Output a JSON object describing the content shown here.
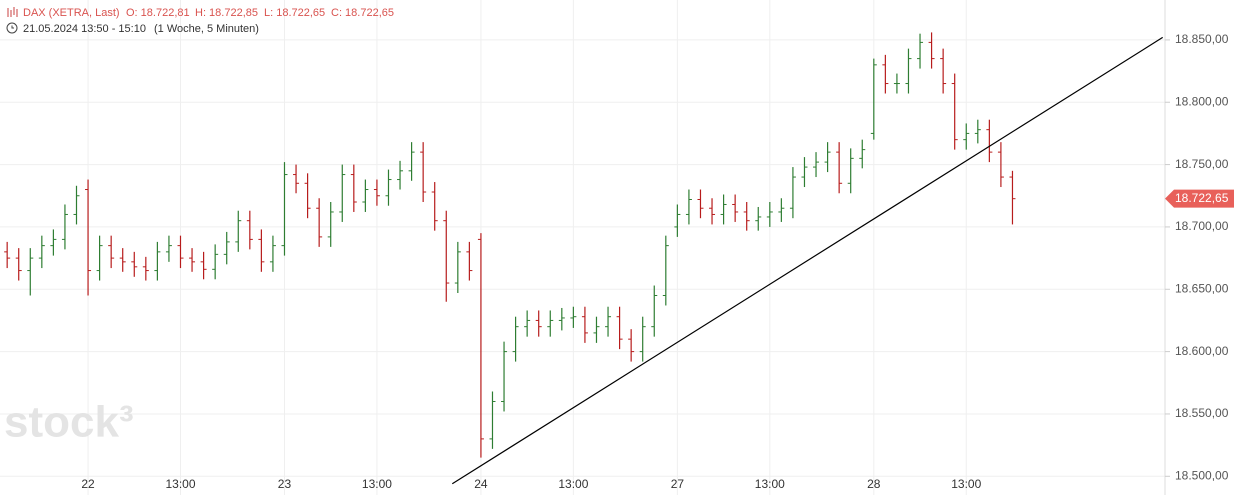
{
  "chart_data": {
    "type": "ohlc",
    "header": {
      "symbol": "DAX (XETRA, Last)",
      "open": "O: 18.722,81",
      "high": "H: 18.722,85",
      "low": "L: 18.722,65",
      "close": "C: 18.722,65",
      "period": "21.05.2024 13:50 - 15:10",
      "range": "(1 Woche, 5 Minuten)"
    },
    "watermark": "stock³",
    "x": [
      -3.5,
      -3,
      -2.5,
      -2,
      -1.5,
      -1,
      -0.5,
      0,
      0.5,
      1,
      1.5,
      2,
      2.5,
      3,
      3.5,
      4,
      4.5,
      5,
      5.5,
      6,
      6.5,
      7,
      7.5,
      8,
      8.5,
      9,
      9.5,
      10,
      10.5,
      11,
      11.5,
      12,
      12.5,
      13,
      13.5,
      14,
      14.5,
      15,
      15.5,
      16,
      16.5,
      17,
      17.5,
      18,
      18.5,
      19,
      19.5,
      20,
      20.5,
      21,
      21.5,
      22,
      22.5,
      23,
      23.5,
      24,
      24.5,
      25,
      25.5,
      26,
      26.5,
      27,
      27.5,
      28,
      28.5,
      29,
      29.5,
      30,
      30.5,
      31,
      31.5,
      32,
      32.5,
      33,
      33.5,
      34,
      34.5,
      35,
      35.5,
      36,
      36.5,
      37,
      37.5,
      38,
      38.5,
      39,
      39.5,
      40
    ],
    "open": [
      18680,
      18675,
      18665,
      18675,
      18685,
      18690,
      18710,
      18730,
      18665,
      18685,
      18675,
      18672,
      18668,
      18665,
      18680,
      18685,
      18675,
      18672,
      18666,
      18678,
      18688,
      18705,
      18690,
      18672,
      18685,
      18742,
      18735,
      18715,
      18692,
      18712,
      18742,
      18720,
      18730,
      18725,
      18738,
      18745,
      18760,
      18728,
      18705,
      18655,
      18680,
      18690,
      18530,
      18560,
      18600,
      18620,
      18625,
      18620,
      18625,
      18627,
      18628,
      18615,
      18620,
      18628,
      18610,
      18600,
      18620,
      18645,
      18700,
      18710,
      18722,
      18715,
      18710,
      18718,
      18712,
      18705,
      18708,
      18712,
      18715,
      18740,
      18748,
      18752,
      18760,
      18735,
      18755,
      18775,
      18830,
      18815,
      18815,
      18835,
      18848,
      18835,
      18815,
      18770,
      18775,
      18778,
      18760,
      18740
    ],
    "high": [
      18688,
      18683,
      18683,
      18693,
      18698,
      18718,
      18733,
      18738,
      18693,
      18693,
      18683,
      18680,
      18676,
      18688,
      18693,
      18693,
      18683,
      18680,
      18686,
      18696,
      18713,
      18713,
      18698,
      18693,
      18752,
      18750,
      18743,
      18723,
      18720,
      18750,
      18750,
      18738,
      18738,
      18746,
      18753,
      18768,
      18768,
      18736,
      18713,
      18688,
      18688,
      18695,
      18568,
      18608,
      18628,
      18633,
      18633,
      18633,
      18635,
      18636,
      18636,
      18628,
      18636,
      18636,
      18618,
      18628,
      18653,
      18693,
      18718,
      18730,
      18730,
      18723,
      18726,
      18726,
      18720,
      18716,
      18720,
      18723,
      18748,
      18756,
      18760,
      18768,
      18768,
      18763,
      18770,
      18835,
      18838,
      18823,
      18843,
      18855,
      18856,
      18843,
      18823,
      18783,
      18786,
      18786,
      18768,
      18745
    ],
    "low": [
      18667,
      18657,
      18645,
      18667,
      18677,
      18682,
      18702,
      18645,
      18657,
      18667,
      18664,
      18660,
      18657,
      18657,
      18672,
      18667,
      18664,
      18658,
      18658,
      18670,
      18680,
      18682,
      18664,
      18664,
      18677,
      18727,
      18707,
      18684,
      18684,
      18704,
      18712,
      18712,
      18717,
      18717,
      18730,
      18737,
      18720,
      18697,
      18640,
      18647,
      18657,
      18515,
      18522,
      18552,
      18592,
      18612,
      18612,
      18612,
      18617,
      18619,
      18607,
      18607,
      18612,
      18602,
      18592,
      18592,
      18612,
      18637,
      18692,
      18702,
      18707,
      18702,
      18702,
      18704,
      18697,
      18697,
      18700,
      18704,
      18707,
      18732,
      18740,
      18744,
      18727,
      18727,
      18747,
      18770,
      18807,
      18807,
      18807,
      18827,
      18827,
      18807,
      18762,
      18762,
      18767,
      18752,
      18732,
      18702
    ],
    "close": [
      18675,
      18665,
      18675,
      18685,
      18690,
      18710,
      18725,
      18665,
      18685,
      18675,
      18672,
      18668,
      18665,
      18680,
      18685,
      18675,
      18672,
      18666,
      18678,
      18688,
      18705,
      18690,
      18672,
      18685,
      18742,
      18735,
      18715,
      18692,
      18712,
      18742,
      18720,
      18730,
      18725,
      18738,
      18745,
      18760,
      18728,
      18705,
      18655,
      18680,
      18665,
      18530,
      18560,
      18600,
      18620,
      18625,
      18620,
      18625,
      18627,
      18628,
      18615,
      18620,
      18628,
      18610,
      18600,
      18620,
      18645,
      18685,
      18710,
      18722,
      18715,
      18710,
      18718,
      18712,
      18705,
      18708,
      18712,
      18715,
      18740,
      18748,
      18752,
      18760,
      18735,
      18755,
      18762,
      18830,
      18815,
      18815,
      18835,
      18848,
      18835,
      18815,
      18770,
      18775,
      18778,
      18760,
      18740,
      18722.65
    ],
    "xlim": [
      -3.81,
      46.6
    ],
    "xticks": [
      {
        "value": 0,
        "label": "22"
      },
      {
        "value": 4,
        "label": "13:00"
      },
      {
        "value": 8.5,
        "label": "23"
      },
      {
        "value": 12.5,
        "label": "13:00"
      },
      {
        "value": 17,
        "label": "24"
      },
      {
        "value": 21,
        "label": "13:00"
      },
      {
        "value": 25.5,
        "label": "27"
      },
      {
        "value": 29.5,
        "label": "13:00"
      },
      {
        "value": 34,
        "label": "28"
      },
      {
        "value": 38,
        "label": "13:00"
      }
    ],
    "ylim": [
      18485,
      18882
    ],
    "yticks": [
      {
        "value": 18500,
        "label": "18.500,00"
      },
      {
        "value": 18550,
        "label": "18.550,00"
      },
      {
        "value": 18600,
        "label": "18.600,00"
      },
      {
        "value": 18650,
        "label": "18.650,00"
      },
      {
        "value": 18700,
        "label": "18.700,00"
      },
      {
        "value": 18750,
        "label": "18.750,00"
      },
      {
        "value": 18800,
        "label": "18.800,00"
      },
      {
        "value": 18850,
        "label": "18.850,00"
      }
    ],
    "grid": true,
    "up_color": "#2e7d32",
    "down_color": "#b71c1c",
    "trendline": {
      "x": [
        15.76,
        46.5
      ],
      "y": [
        18494,
        18852
      ],
      "color": "#000000"
    },
    "last_price": {
      "value": 18722.65,
      "label": "18.722,65",
      "color": "#e8605a"
    }
  }
}
